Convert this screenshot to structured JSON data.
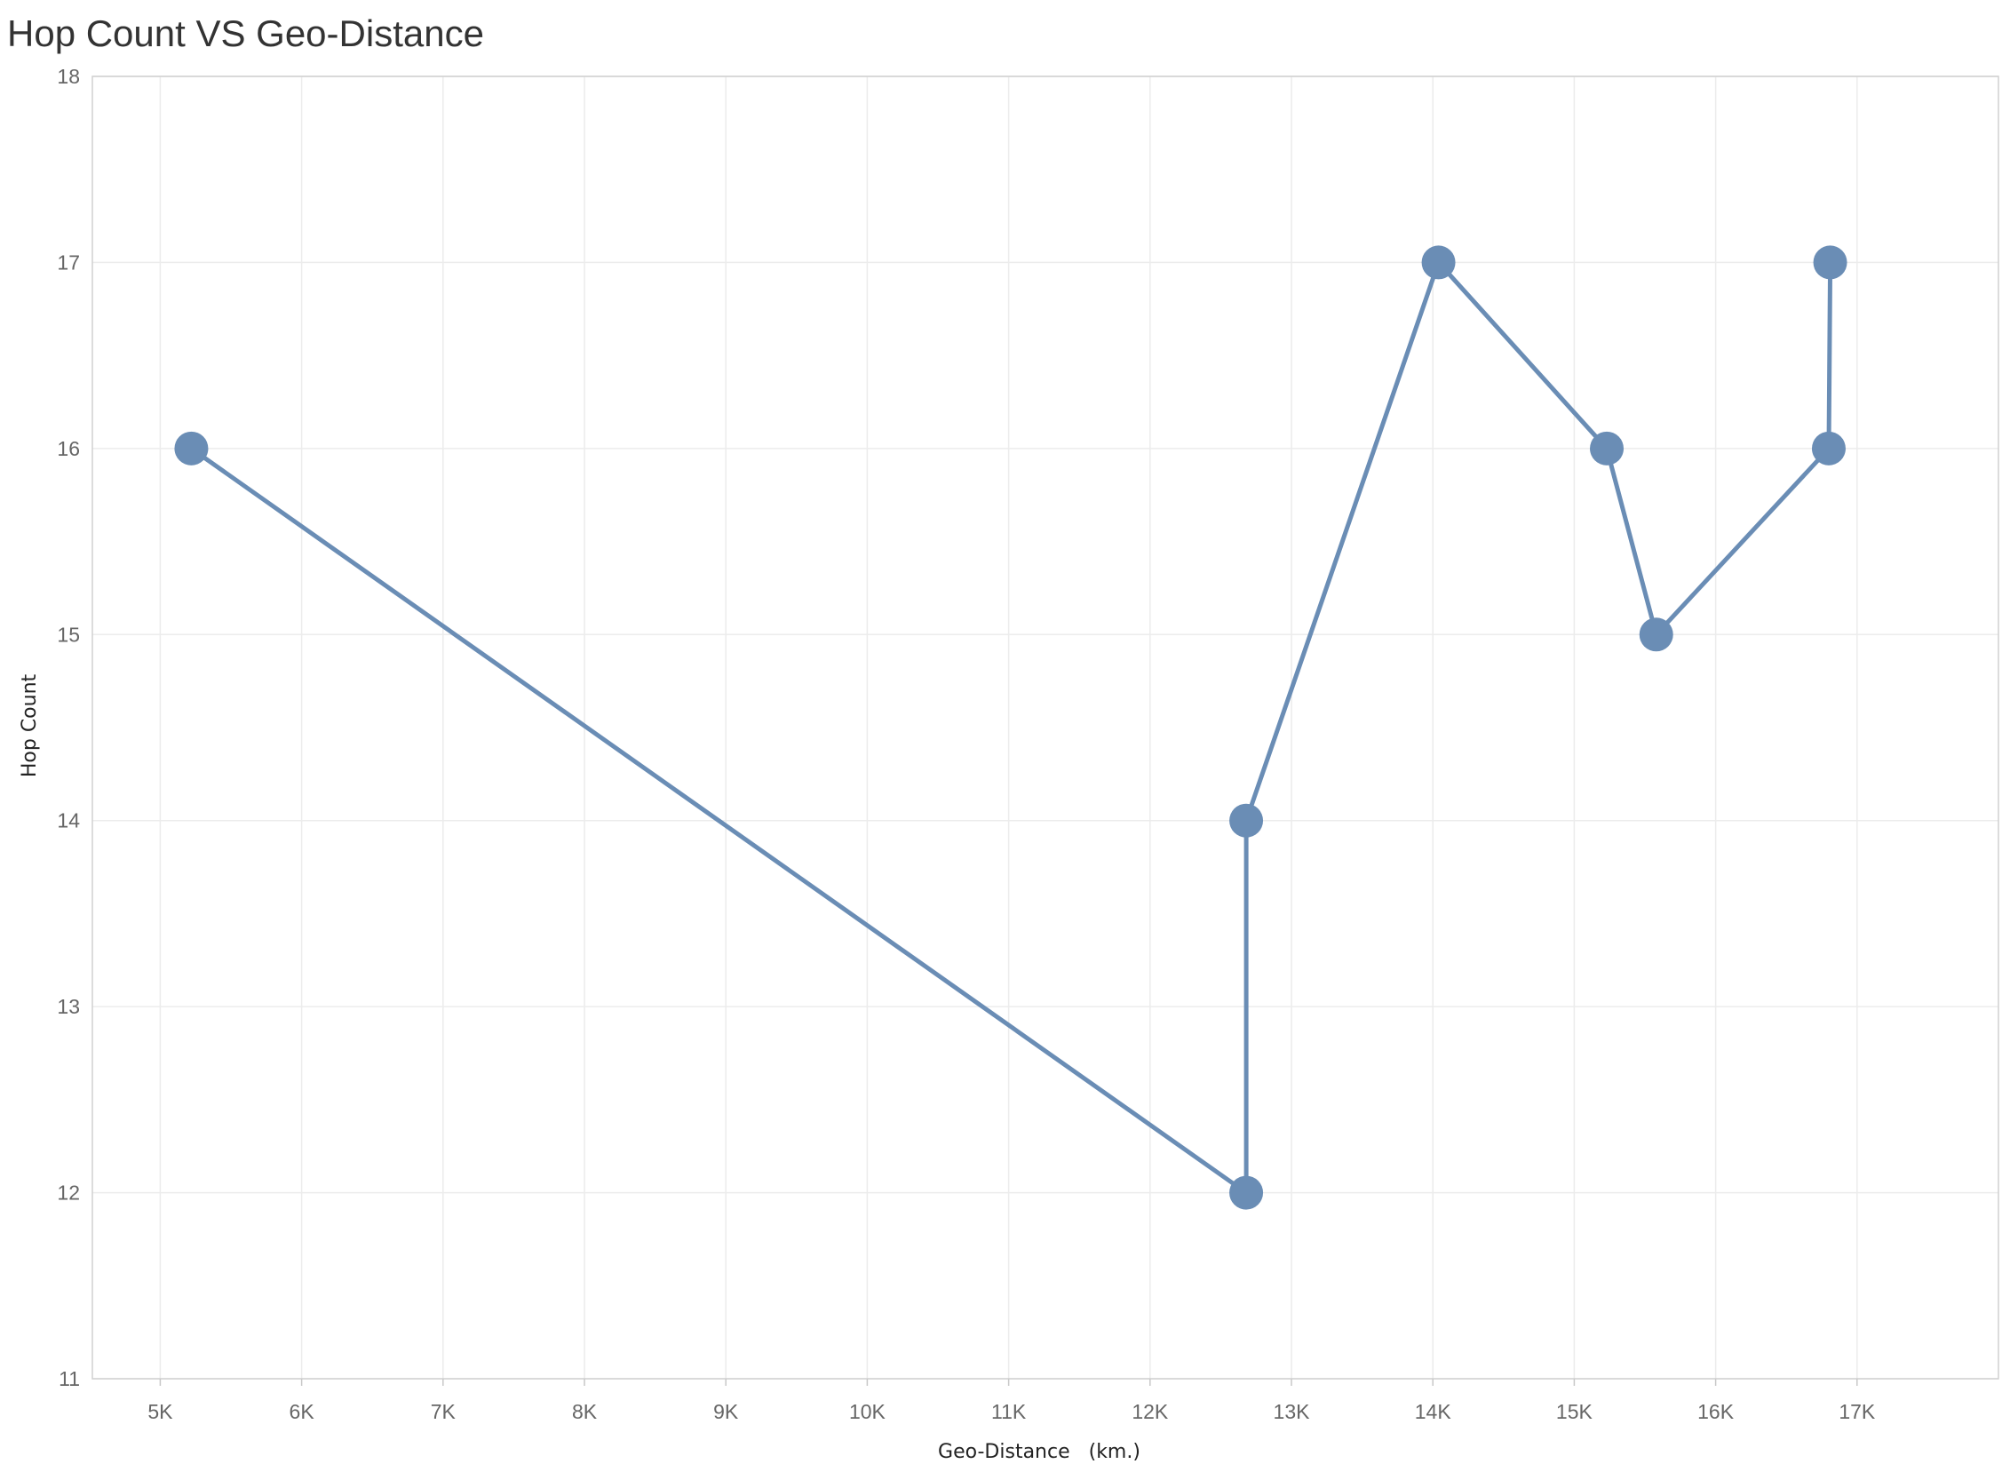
{
  "chart_data": {
    "type": "line",
    "title": "Hop Count VS Geo-Distance",
    "xlabel": "Geo-Distance   (km.)",
    "ylabel": "Hop Count",
    "xlim": [
      4520,
      18000
    ],
    "ylim": [
      11,
      18
    ],
    "x_ticks": [
      5000,
      6000,
      7000,
      8000,
      9000,
      10000,
      11000,
      12000,
      13000,
      14000,
      15000,
      16000,
      17000
    ],
    "x_tick_labels": [
      "5K",
      "6K",
      "7K",
      "8K",
      "9K",
      "10K",
      "11K",
      "12K",
      "13K",
      "14K",
      "15K",
      "16K",
      "17K"
    ],
    "y_ticks": [
      11,
      12,
      13,
      14,
      15,
      16,
      17,
      18
    ],
    "y_tick_labels": [
      "11",
      "12",
      "13",
      "14",
      "15",
      "16",
      "17",
      "18"
    ],
    "grid": true,
    "color": "#6a8db5",
    "series": [
      {
        "points": [
          {
            "x": 5220,
            "y": 16
          },
          {
            "x": 12680,
            "y": 12
          },
          {
            "x": 12680,
            "y": 14
          },
          {
            "x": 14040,
            "y": 17
          },
          {
            "x": 15230,
            "y": 16
          },
          {
            "x": 15580,
            "y": 15
          },
          {
            "x": 16800,
            "y": 16
          },
          {
            "x": 16810,
            "y": 17
          }
        ]
      }
    ]
  }
}
